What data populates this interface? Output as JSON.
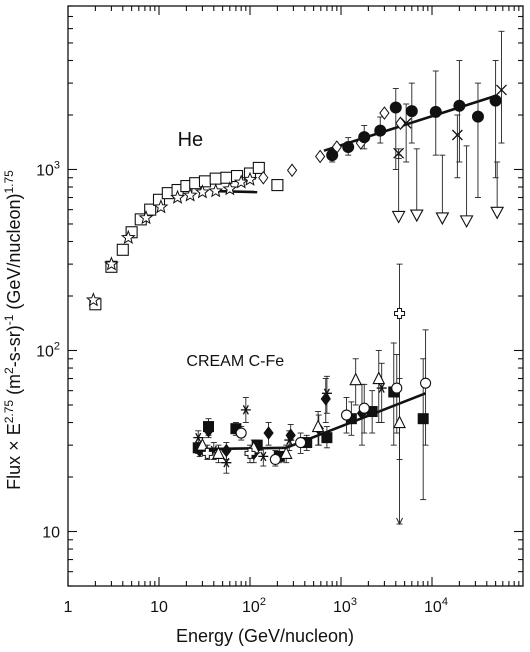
{
  "chart_data": {
    "type": "scatter",
    "title": "",
    "xlabel": "Energy (GeV/nucleon)",
    "ylabel": "Flux × E^{2.75} (m²-s-sr)⁻¹ (GeV/nucleon)^{1.75}",
    "ylabel_parts": {
      "main": "Flux × E",
      "exp1": "2.75",
      "mid": " (m",
      "exp2": "2",
      "mid2": "-s-sr)",
      "exp3": "-1",
      "mid3": " (GeV/nucleon)",
      "exp4": "1.75"
    },
    "xscale": "log",
    "yscale": "log",
    "xlim": [
      1,
      100000
    ],
    "ylim": [
      5,
      8000
    ],
    "grid": false,
    "x_ticks": [
      {
        "value": 1,
        "base": "1",
        "exp": ""
      },
      {
        "value": 10,
        "base": "10",
        "exp": ""
      },
      {
        "value": 100,
        "base": "10",
        "exp": "2"
      },
      {
        "value": 1000,
        "base": "10",
        "exp": "3"
      },
      {
        "value": 10000,
        "base": "10",
        "exp": "4"
      }
    ],
    "y_ticks": [
      {
        "value": 10,
        "base": "10",
        "exp": ""
      },
      {
        "value": 100,
        "base": "10",
        "exp": "2"
      },
      {
        "value": 1000,
        "base": "10",
        "exp": "3"
      }
    ],
    "annotations": [
      {
        "text": "He",
        "x": 16,
        "y": 1350,
        "size": 20
      },
      {
        "text": "CREAM C-Fe",
        "x": 20,
        "y": 82,
        "size": 16
      }
    ],
    "series": [
      {
        "marker": "square-open",
        "points": [
          {
            "x": 2.0,
            "y": 180
          },
          {
            "x": 3.0,
            "y": 290
          },
          {
            "x": 4.0,
            "y": 360
          },
          {
            "x": 5.0,
            "y": 450
          },
          {
            "x": 6.3,
            "y": 530
          },
          {
            "x": 8.0,
            "y": 600
          },
          {
            "x": 10.0,
            "y": 680
          },
          {
            "x": 12.5,
            "y": 740
          },
          {
            "x": 16.0,
            "y": 770
          },
          {
            "x": 20.0,
            "y": 810
          },
          {
            "x": 25.0,
            "y": 840
          },
          {
            "x": 32.0,
            "y": 860
          },
          {
            "x": 42.0,
            "y": 890
          },
          {
            "x": 55.0,
            "y": 900
          },
          {
            "x": 72.0,
            "y": 920
          },
          {
            "x": 100.0,
            "y": 950
          },
          {
            "x": 125.0,
            "y": 1020
          },
          {
            "x": 200.0,
            "y": 820
          }
        ]
      },
      {
        "marker": "star-open",
        "points": [
          {
            "x": 1.9,
            "y": 190
          },
          {
            "x": 3.0,
            "y": 300
          },
          {
            "x": 4.6,
            "y": 420
          },
          {
            "x": 7.2,
            "y": 540
          },
          {
            "x": 10.5,
            "y": 620
          },
          {
            "x": 16.0,
            "y": 700
          },
          {
            "x": 22.0,
            "y": 720
          },
          {
            "x": 30.0,
            "y": 750
          },
          {
            "x": 42.0,
            "y": 760
          },
          {
            "x": 60.0,
            "y": 780
          },
          {
            "x": 80.0,
            "y": 850
          },
          {
            "x": 100.0,
            "y": 880
          }
        ]
      },
      {
        "marker": "diamond-open",
        "points": [
          {
            "x": 140.0,
            "y": 900
          },
          {
            "x": 290.0,
            "y": 990
          },
          {
            "x": 590.0,
            "y": 1180
          },
          {
            "x": 900.0,
            "y": 1330
          },
          {
            "x": 1650.0,
            "y": 1400
          },
          {
            "x": 3000.0,
            "y": 2050
          },
          {
            "x": 4500.0,
            "y": 1800
          }
        ]
      },
      {
        "marker": "circle-filled",
        "points": [
          {
            "x": 800.0,
            "y": 1200,
            "err": [
              1100,
              1300
            ]
          },
          {
            "x": 1200.0,
            "y": 1330,
            "err": [
              1200,
              1500
            ]
          },
          {
            "x": 1800.0,
            "y": 1510,
            "err": [
              1300,
              1750
            ]
          },
          {
            "x": 2700.0,
            "y": 1640,
            "err": [
              1400,
              1950
            ]
          },
          {
            "x": 4000.0,
            "y": 2200,
            "err": [
              1000,
              2800
            ]
          },
          {
            "x": 6000.0,
            "y": 2100,
            "err": [
              1400,
              3000
            ]
          },
          {
            "x": 11000.0,
            "y": 2080,
            "err": [
              1200,
              3500
            ]
          },
          {
            "x": 20000.0,
            "y": 2250,
            "err": [
              1100,
              4000
            ]
          },
          {
            "x": 32000.0,
            "y": 1960,
            "err": [
              700,
              3000
            ]
          },
          {
            "x": 50000.0,
            "y": 2400,
            "err": [
              900,
              4000
            ]
          }
        ]
      },
      {
        "marker": "x",
        "points": [
          {
            "x": 4300.0,
            "y": 1230,
            "err": [
              1150,
              1300
            ]
          },
          {
            "x": 5200.0,
            "y": 1800,
            "err": [
              1100,
              2300
            ]
          },
          {
            "x": 19000.0,
            "y": 1550,
            "err": [
              900,
              2000
            ]
          },
          {
            "x": 58000.0,
            "y": 2750,
            "err": [
              1400,
              5800
            ]
          }
        ]
      },
      {
        "marker": "triangle-down-open",
        "points": [
          {
            "x": 4300.0,
            "y": 550,
            "err": [
              550,
              1200
            ]
          },
          {
            "x": 6800.0,
            "y": 560,
            "err": [
              560,
              1300
            ]
          },
          {
            "x": 13000.0,
            "y": 540,
            "err": [
              540,
              1200
            ]
          },
          {
            "x": 24000.0,
            "y": 520,
            "err": [
              520,
              1350
            ]
          },
          {
            "x": 52000.0,
            "y": 580,
            "err": [
              580,
              1100
            ]
          }
        ]
      },
      {
        "marker": "square-filled",
        "points": [
          {
            "x": 27.0,
            "y": 29,
            "err": [
              27,
              31
            ]
          },
          {
            "x": 35.0,
            "y": 38,
            "err": [
              34,
              42
            ]
          },
          {
            "x": 70.0,
            "y": 37,
            "err": [
              34,
              40
            ]
          },
          {
            "x": 120.0,
            "y": 30,
            "err": [
              28,
              32
            ]
          },
          {
            "x": 210.0,
            "y": 26,
            "err": [
              24,
              29
            ]
          },
          {
            "x": 420.0,
            "y": 31,
            "err": [
              28,
              34
            ]
          },
          {
            "x": 700.0,
            "y": 33,
            "err": [
              29,
              38
            ]
          },
          {
            "x": 1300.0,
            "y": 42,
            "err": [
              34,
              52
            ]
          },
          {
            "x": 2200.0,
            "y": 46,
            "err": [
              35,
              60
            ]
          },
          {
            "x": 3800.0,
            "y": 59,
            "err": [
              30,
              110
            ]
          },
          {
            "x": 8000.0,
            "y": 42,
            "err": [
              15,
              90
            ]
          }
        ]
      },
      {
        "marker": "diamond-filled",
        "points": [
          {
            "x": 28.0,
            "y": 28,
            "err": [
              26,
              30
            ]
          },
          {
            "x": 35.0,
            "y": 36,
            "err": [
              33,
              40
            ]
          },
          {
            "x": 55.0,
            "y": 28,
            "err": [
              25,
              31
            ]
          },
          {
            "x": 110.0,
            "y": 27,
            "err": [
              24,
              30
            ]
          },
          {
            "x": 160.0,
            "y": 35,
            "err": [
              30,
              40
            ]
          },
          {
            "x": 280.0,
            "y": 34,
            "err": [
              30,
              39
            ]
          },
          {
            "x": 570.0,
            "y": 37,
            "err": [
              30,
              44
            ]
          },
          {
            "x": 680.0,
            "y": 54,
            "err": [
              40,
              70
            ]
          },
          {
            "x": 1700.0,
            "y": 45,
            "err": [
              30,
              65
            ]
          }
        ]
      },
      {
        "marker": "star-asterisk",
        "points": [
          {
            "x": 27.0,
            "y": 33,
            "err": [
              30,
              36
            ]
          },
          {
            "x": 40.0,
            "y": 28,
            "err": [
              25,
              31
            ]
          },
          {
            "x": 55.0,
            "y": 24,
            "err": [
              21,
              28
            ]
          },
          {
            "x": 90.0,
            "y": 47,
            "err": [
              40,
              55
            ]
          },
          {
            "x": 140.0,
            "y": 26,
            "err": [
              23,
              29
            ]
          },
          {
            "x": 270.0,
            "y": 32,
            "err": [
              28,
              36
            ]
          },
          {
            "x": 700.0,
            "y": 58,
            "err": [
              45,
              72
            ]
          },
          {
            "x": 2800.0,
            "y": 62,
            "err": [
              40,
              85
            ]
          }
        ]
      },
      {
        "marker": "circle-open",
        "points": [
          {
            "x": 80.0,
            "y": 35,
            "err": [
              32,
              38
            ]
          },
          {
            "x": 190.0,
            "y": 25,
            "err": [
              23,
              28
            ]
          },
          {
            "x": 360.0,
            "y": 31,
            "err": [
              27,
              35
            ]
          },
          {
            "x": 1150.0,
            "y": 44,
            "err": [
              35,
              55
            ]
          },
          {
            "x": 1800.0,
            "y": 48,
            "err": [
              35,
              65
            ]
          },
          {
            "x": 4100.0,
            "y": 62,
            "err": [
              35,
              95
            ]
          },
          {
            "x": 8500.0,
            "y": 66,
            "err": [
              30,
              130
            ]
          }
        ]
      },
      {
        "marker": "triangle-up-open",
        "points": [
          {
            "x": 30.0,
            "y": 30,
            "err": [
              28,
              33
            ]
          },
          {
            "x": 45.0,
            "y": 27,
            "err": [
              24,
              30
            ]
          },
          {
            "x": 110.0,
            "y": 29,
            "err": [
              26,
              32
            ]
          },
          {
            "x": 250.0,
            "y": 27,
            "err": [
              24,
              30
            ]
          },
          {
            "x": 560.0,
            "y": 38,
            "err": [
              30,
              46
            ]
          },
          {
            "x": 1450.0,
            "y": 69,
            "err": [
              50,
              90
            ]
          },
          {
            "x": 2600.0,
            "y": 70,
            "err": [
              40,
              100
            ]
          },
          {
            "x": 4400.0,
            "y": 40,
            "err": [
              25,
              70
            ]
          }
        ]
      },
      {
        "marker": "plus-open",
        "points": [
          {
            "x": 34.0,
            "y": 27,
            "err": [
              25,
              30
            ]
          },
          {
            "x": 100.0,
            "y": 27,
            "err": [
              24,
              30
            ]
          },
          {
            "x": 4400.0,
            "y": 160,
            "err": [
              11,
              300
            ]
          }
        ]
      }
    ],
    "fit_lines": [
      {
        "x": [
          40,
          120
        ],
        "y": [
          760,
          750
        ]
      },
      {
        "x": [
          650,
          50000
        ],
        "y": [
          1270,
          2550
        ]
      },
      {
        "x": [
          25,
          250
        ],
        "y": [
          28.5,
          29
        ]
      },
      {
        "x": [
          250,
          8500
        ],
        "y": [
          29,
          58
        ]
      }
    ]
  }
}
